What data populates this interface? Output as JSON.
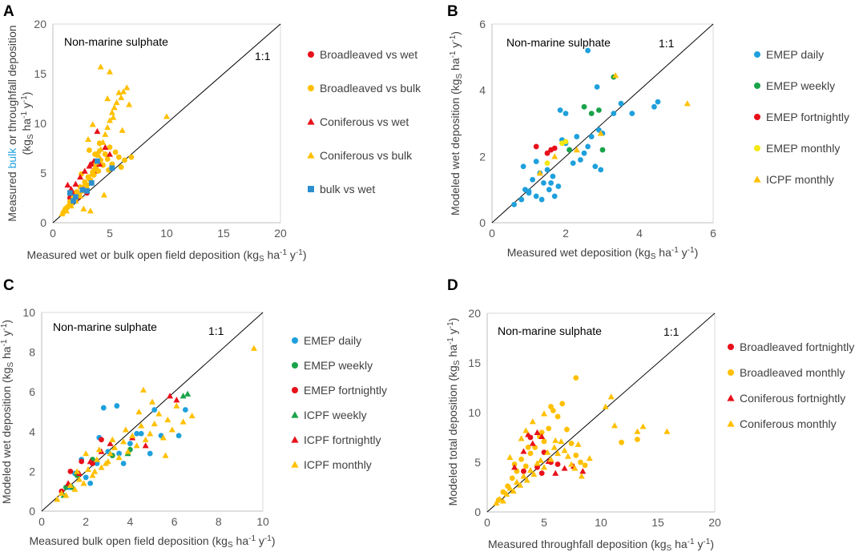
{
  "colors": {
    "blue": "#1ea0dc",
    "green": "#1aa34a",
    "red": "#e8101a",
    "yellow": "#f5e714",
    "gold": "#ffc000",
    "square_blue": "#2e8fcf"
  },
  "chart_data": [
    {
      "id": "A",
      "type": "scatter",
      "panel_label": "A",
      "title": "Non-marine sulphate",
      "identity_label": "1:1",
      "xlabel": "Measured wet or bulk open field deposition (kgS ha-1 y-1)",
      "xlabel_parts": {
        "pre": "Measured wet or bulk open field deposition (kg",
        "sub": "S",
        "mid": " ha",
        "sup1": "-1",
        "mid2": " y",
        "sup2": "-1",
        "post": ")"
      },
      "ylabel_line1_pre": "Measured ",
      "ylabel_line1_hl": "bulk",
      "ylabel_line1_post": " or throughfall deposition",
      "ylabel_line2_parts": {
        "pre": "(kg",
        "sub": "S",
        "mid": " ha",
        "sup1": "-1",
        "mid2": " y",
        "sup2": "-1",
        "post": ")"
      },
      "xlim": [
        0,
        20
      ],
      "ylim": [
        0,
        20
      ],
      "xticks": [
        0,
        5,
        10,
        15,
        20
      ],
      "yticks": [
        0,
        5,
        10,
        15,
        20
      ],
      "series": [
        {
          "name": "Broadleaved vs wet",
          "marker": "circle",
          "color": "red",
          "x": [
            1.5,
            1.7,
            2.0,
            2.3,
            2.6,
            3.0,
            3.4,
            3.8
          ],
          "y": [
            2.5,
            3.0,
            2.2,
            2.8,
            3.4,
            3.0,
            5.9,
            5.2
          ]
        },
        {
          "name": "Broadleaved vs bulk",
          "marker": "circle",
          "color": "gold",
          "x": [
            0.9,
            1.1,
            1.3,
            1.5,
            1.6,
            1.8,
            2.0,
            2.1,
            2.3,
            2.4,
            2.6,
            2.8,
            3.0,
            3.1,
            3.3,
            3.5,
            3.6,
            3.8,
            4.0,
            4.2,
            4.4,
            4.6,
            4.8,
            5.0,
            5.2,
            5.5,
            5.8,
            6.0,
            6.3,
            6.9,
            3.2,
            3.7,
            4.1,
            2.5,
            4.9
          ],
          "y": [
            1.0,
            1.3,
            1.6,
            2.1,
            1.9,
            2.5,
            2.4,
            3.1,
            2.8,
            3.6,
            3.2,
            4.1,
            3.8,
            4.6,
            4.3,
            5.1,
            4.8,
            5.6,
            5.2,
            6.3,
            5.8,
            6.9,
            6.4,
            7.6,
            5.9,
            7.1,
            6.6,
            5.6,
            6.3,
            6.6,
            7.3,
            6.9,
            8.0,
            4.9,
            5.3
          ]
        },
        {
          "name": "Coniferous vs wet",
          "marker": "triangle",
          "color": "red",
          "x": [
            1.3,
            1.6,
            2.0,
            2.4,
            2.8,
            3.2,
            3.6,
            4.1,
            4.6,
            5.0,
            2.2,
            3.9
          ],
          "y": [
            3.8,
            3.4,
            3.9,
            4.6,
            5.2,
            5.7,
            6.2,
            5.9,
            7.6,
            6.9,
            2.6,
            9.2
          ]
        },
        {
          "name": "Coniferous vs bulk",
          "marker": "triangle",
          "color": "gold",
          "x": [
            0.8,
            1.0,
            1.2,
            1.4,
            1.6,
            1.8,
            2.0,
            2.2,
            2.4,
            2.6,
            2.8,
            3.0,
            3.2,
            3.4,
            3.6,
            3.8,
            4.0,
            4.2,
            4.4,
            4.6,
            4.8,
            5.0,
            5.2,
            5.4,
            5.6,
            5.8,
            6.0,
            6.2,
            6.5,
            6.7,
            4.2,
            5.0,
            6.1,
            3.5,
            4.8,
            5.3,
            3.1,
            4.0,
            10.0,
            2.7,
            3.3,
            4.5
          ],
          "y": [
            0.9,
            1.4,
            1.2,
            1.9,
            1.7,
            2.4,
            2.2,
            2.9,
            2.7,
            3.4,
            3.9,
            3.6,
            4.5,
            4.9,
            5.4,
            6.1,
            6.8,
            7.4,
            8.1,
            8.9,
            9.6,
            10.3,
            11.1,
            11.6,
            12.1,
            13.1,
            12.6,
            13.2,
            13.6,
            11.9,
            15.7,
            15.2,
            9.3,
            9.9,
            12.5,
            10.6,
            8.4,
            7.2,
            10.7,
            1.4,
            1.2,
            2.8
          ]
        },
        {
          "name": "bulk vs wet",
          "marker": "square",
          "color": "square_blue",
          "x": [
            1.5,
            1.8,
            2.0,
            2.6,
            3.0,
            3.4,
            3.9,
            5.2
          ],
          "y": [
            3.0,
            2.2,
            2.6,
            3.3,
            3.2,
            4.0,
            6.2,
            5.5
          ]
        }
      ]
    },
    {
      "id": "B",
      "type": "scatter",
      "panel_label": "B",
      "title": "Non-marine sulphate",
      "identity_label": "1:1",
      "xlabel_parts": {
        "pre": "Measured wet deposition (kg",
        "sub": "S",
        "mid": " ha",
        "sup1": "-1",
        "mid2": " y",
        "sup2": "-1",
        "post": ")"
      },
      "ylabel_parts": {
        "pre": "Modeled wet deposition (kg",
        "sub": "S",
        "mid": " ha",
        "sup1": "-1",
        "mid2": " y",
        "sup2": "-1",
        "post": ")"
      },
      "xlim": [
        0,
        6
      ],
      "ylim": [
        0,
        6
      ],
      "xticks": [
        0,
        2,
        4,
        6
      ],
      "yticks": [
        0,
        2,
        4,
        6
      ],
      "series": [
        {
          "name": "EMEP daily",
          "marker": "circle",
          "color": "blue",
          "x": [
            0.6,
            0.8,
            0.9,
            1.0,
            1.1,
            1.2,
            1.3,
            1.35,
            1.4,
            1.5,
            1.55,
            1.6,
            1.65,
            1.7,
            1.8,
            1.85,
            1.9,
            2.0,
            2.1,
            2.2,
            2.3,
            2.4,
            2.5,
            2.6,
            2.7,
            2.8,
            2.9,
            2.95,
            3.0,
            3.3,
            3.5,
            3.8,
            4.4,
            4.5,
            2.6,
            2.85,
            2.0,
            1.2,
            0.85,
            1.0
          ],
          "y": [
            0.55,
            0.7,
            1.0,
            0.9,
            1.3,
            0.8,
            1.5,
            0.7,
            1.2,
            1.6,
            1.0,
            1.2,
            1.4,
            0.8,
            1.1,
            3.4,
            2.5,
            3.3,
            2.2,
            1.8,
            2.6,
            1.9,
            2.1,
            5.2,
            2.6,
            1.7,
            2.8,
            1.6,
            2.7,
            3.3,
            3.6,
            3.3,
            3.5,
            3.65,
            2.3,
            4.1,
            2.4,
            1.85,
            1.7,
            0.95
          ]
        },
        {
          "name": "EMEP weekly",
          "marker": "circle",
          "color": "green",
          "x": [
            2.1,
            2.5,
            2.7,
            2.9,
            3.0,
            3.3
          ],
          "y": [
            2.2,
            3.5,
            3.3,
            3.4,
            2.2,
            4.4
          ]
        },
        {
          "name": "EMEP fortnightly",
          "marker": "circle",
          "color": "red",
          "x": [
            1.2,
            1.5,
            1.6,
            1.7
          ],
          "y": [
            2.3,
            2.1,
            2.2,
            2.25
          ]
        },
        {
          "name": "EMEP monthly",
          "marker": "circle",
          "color": "yellow",
          "x": [
            1.5,
            1.9,
            2.0
          ],
          "y": [
            1.8,
            2.4,
            2.45
          ]
        },
        {
          "name": "ICPF monthly",
          "marker": "triangle",
          "color": "gold",
          "x": [
            1.3,
            1.7,
            2.3,
            2.95,
            3.35,
            5.3
          ],
          "y": [
            1.5,
            2.0,
            2.2,
            2.7,
            4.45,
            3.6
          ]
        }
      ]
    },
    {
      "id": "C",
      "type": "scatter",
      "panel_label": "C",
      "title": "Non-marine sulphate",
      "identity_label": "1:1",
      "xlabel_parts": {
        "pre": "Measured bulk open field deposition (kg",
        "sub": "S",
        "mid": " ha",
        "sup1": "-1",
        "mid2": " y",
        "sup2": "-1",
        "post": ")"
      },
      "ylabel_parts": {
        "pre": "Modeled wet deposition (kg",
        "sub": "S",
        "mid": " ha",
        "sup1": "-1",
        "mid2": " y",
        "sup2": "-1",
        "post": ")"
      },
      "xlim": [
        0,
        10
      ],
      "ylim": [
        0,
        10
      ],
      "xticks": [
        0,
        2,
        4,
        6,
        8,
        10
      ],
      "yticks": [
        0,
        2,
        4,
        6,
        8,
        10
      ],
      "series": [
        {
          "name": "EMEP daily",
          "marker": "circle",
          "color": "blue",
          "x": [
            1.2,
            1.5,
            1.8,
            2.0,
            2.2,
            2.5,
            2.8,
            3.0,
            3.4,
            3.7,
            4.0,
            4.5,
            4.9,
            5.1,
            5.4,
            6.2,
            6.5,
            3.5,
            2.6,
            4.3
          ],
          "y": [
            1.2,
            1.9,
            2.6,
            1.7,
            1.4,
            2.4,
            5.2,
            3.0,
            5.3,
            2.4,
            3.4,
            3.9,
            2.9,
            5.1,
            3.8,
            3.8,
            5.1,
            2.9,
            3.7,
            3.9
          ]
        },
        {
          "name": "EMEP weekly",
          "marker": "circle",
          "color": "green",
          "x": [
            1.1,
            1.6,
            2.3,
            3.2,
            4.0
          ],
          "y": [
            1.2,
            1.8,
            2.6,
            2.8,
            3.1
          ]
        },
        {
          "name": "EMEP fortnightly",
          "marker": "circle",
          "color": "red",
          "x": [
            0.9,
            1.3,
            1.8,
            2.3,
            2.7
          ],
          "y": [
            1.0,
            2.0,
            2.5,
            2.4,
            3.6
          ]
        },
        {
          "name": "ICPF weekly",
          "marker": "triangle",
          "color": "green",
          "x": [
            1.0,
            1.4,
            3.9,
            6.4,
            6.6
          ],
          "y": [
            0.8,
            1.2,
            2.9,
            5.8,
            5.9
          ]
        },
        {
          "name": "ICPF fortnightly",
          "marker": "triangle",
          "color": "red",
          "x": [
            1.2,
            1.7,
            2.2,
            2.7,
            3.1,
            4.1,
            4.7,
            5.8,
            6.1
          ],
          "y": [
            1.4,
            1.9,
            2.5,
            3.0,
            3.4,
            3.7,
            3.3,
            5.8,
            5.6
          ]
        },
        {
          "name": "ICPF monthly",
          "marker": "triangle",
          "color": "gold",
          "x": [
            0.7,
            0.9,
            1.1,
            1.3,
            1.5,
            1.7,
            1.9,
            2.1,
            2.3,
            2.5,
            2.7,
            2.9,
            3.1,
            3.3,
            3.5,
            3.7,
            3.9,
            4.1,
            4.3,
            4.5,
            4.7,
            4.9,
            5.1,
            5.3,
            5.5,
            5.7,
            5.9,
            6.1,
            6.4,
            6.8,
            2.0,
            2.6,
            3.2,
            3.8,
            4.4,
            5.0,
            1.6,
            2.4,
            3.0,
            9.6,
            4.6,
            5.6
          ],
          "y": [
            0.6,
            0.9,
            0.8,
            1.3,
            1.1,
            1.6,
            1.4,
            2.1,
            1.8,
            2.6,
            2.2,
            2.4,
            2.9,
            3.2,
            2.7,
            3.5,
            3.0,
            3.8,
            3.3,
            4.3,
            3.6,
            3.9,
            4.4,
            4.9,
            3.7,
            4.6,
            4.1,
            5.3,
            4.5,
            4.8,
            2.9,
            3.1,
            3.6,
            4.1,
            5.0,
            5.5,
            2.0,
            2.0,
            2.5,
            8.2,
            6.1,
            2.8
          ]
        }
      ]
    },
    {
      "id": "D",
      "type": "scatter",
      "panel_label": "D",
      "title": "Non-marine sulphate",
      "identity_label": "1:1",
      "xlabel_parts": {
        "pre": "Measured throughfall deposition (kg",
        "sub": "S",
        "mid": " ha",
        "sup1": "-1",
        "mid2": " y",
        "sup2": "-1",
        "post": ")"
      },
      "ylabel_parts": {
        "pre": "Modeled total deposition (kg",
        "sub": "S",
        "mid": " ha",
        "sup1": "-1",
        "mid2": " y",
        "sup2": "-1",
        "post": ")"
      },
      "xlim": [
        0,
        20
      ],
      "ylim": [
        0,
        20
      ],
      "xticks": [
        0,
        5,
        10,
        15,
        20
      ],
      "yticks": [
        0,
        5,
        10,
        15,
        20
      ],
      "series": [
        {
          "name": "Broadleaved fortnightly",
          "marker": "circle",
          "color": "red",
          "x": [
            3.2,
            3.8,
            4.4,
            5.0,
            5.6,
            6.2,
            4.8
          ],
          "y": [
            4.1,
            7.5,
            4.5,
            6.0,
            5.0,
            4.8,
            3.9
          ]
        },
        {
          "name": "Broadleaved monthly",
          "marker": "circle",
          "color": "gold",
          "x": [
            1.0,
            1.4,
            1.8,
            2.2,
            2.6,
            3.0,
            3.4,
            3.8,
            4.2,
            4.6,
            5.0,
            5.4,
            5.8,
            6.2,
            6.6,
            7.0,
            7.4,
            7.8,
            8.2,
            8.6,
            11.8,
            13.2,
            2.4,
            3.6,
            4.8,
            5.6,
            7.8
          ],
          "y": [
            1.2,
            2.0,
            2.6,
            3.4,
            4.1,
            5.3,
            4.6,
            5.9,
            6.5,
            7.6,
            7.1,
            8.4,
            10.2,
            9.6,
            10.9,
            8.3,
            6.9,
            5.7,
            5.0,
            4.7,
            7.0,
            7.3,
            4.8,
            6.5,
            8.0,
            10.6,
            13.5
          ]
        },
        {
          "name": "Coniferous fortnightly",
          "marker": "triangle",
          "color": "red",
          "x": [
            2.4,
            3.2,
            4.0,
            4.8,
            5.4,
            6.0,
            6.8,
            7.6,
            8.4,
            3.6,
            4.4
          ],
          "y": [
            4.5,
            6.1,
            6.9,
            7.6,
            5.1,
            3.9,
            4.4,
            4.6,
            4.1,
            7.8,
            8.0
          ]
        },
        {
          "name": "Coniferous monthly",
          "marker": "triangle",
          "color": "gold",
          "x": [
            0.8,
            1.1,
            1.4,
            1.7,
            2.0,
            2.3,
            2.6,
            2.9,
            3.2,
            3.5,
            3.8,
            4.1,
            4.4,
            4.7,
            5.0,
            5.3,
            5.6,
            5.9,
            6.2,
            6.5,
            6.8,
            7.1,
            7.4,
            7.7,
            8.0,
            8.3,
            9.0,
            10.4,
            10.9,
            11.2,
            13.2,
            13.7,
            15.8,
            2.0,
            3.0,
            4.0,
            5.0,
            6.0,
            3.4
          ],
          "y": [
            0.9,
            1.3,
            1.1,
            1.8,
            2.4,
            2.1,
            3.0,
            2.7,
            3.6,
            3.2,
            4.2,
            3.8,
            4.9,
            5.2,
            4.5,
            6.0,
            5.3,
            6.5,
            5.9,
            7.1,
            6.2,
            5.6,
            4.8,
            4.4,
            6.8,
            3.6,
            5.4,
            10.6,
            11.6,
            8.7,
            8.1,
            8.6,
            8.1,
            5.5,
            7.4,
            9.1,
            9.9,
            7.2,
            8.2
          ]
        }
      ]
    }
  ]
}
